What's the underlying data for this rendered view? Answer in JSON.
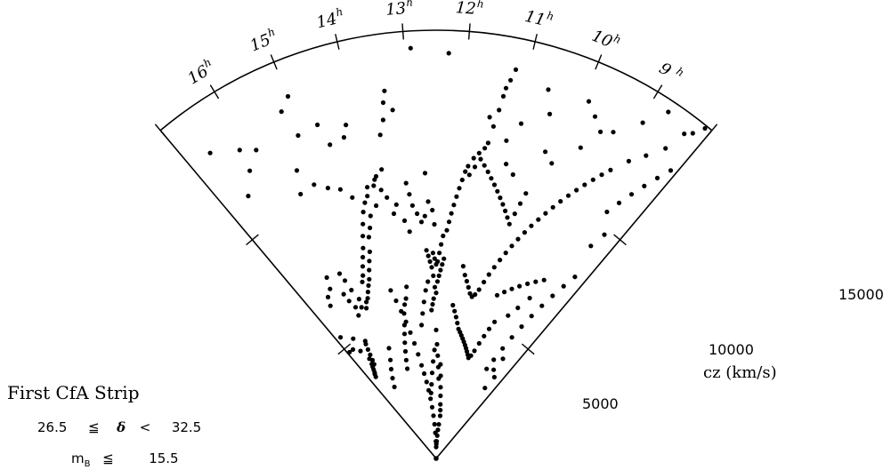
{
  "chart_data": {
    "type": "scatter",
    "title": "First CfA Strip",
    "constraints": {
      "dec_low": "26.5",
      "dec_rel1": "≦",
      "dec_symbol": "δ",
      "dec_rel2": "<",
      "dec_high": "32.5",
      "mag_symbol": "m",
      "mag_sub": "B",
      "mag_rel": "≦",
      "mag_limit": "15.5"
    },
    "ra_axis": {
      "unit_superscript": "h",
      "ticks": [
        "8",
        "9",
        "10",
        "11",
        "12",
        "13",
        "14",
        "15",
        "16",
        "17"
      ],
      "labels": [
        "9",
        "10",
        "11",
        "12",
        "13",
        "14",
        "15",
        "16"
      ],
      "range_hours": [
        8,
        17
      ]
    },
    "cz_axis": {
      "label": "cz (km/s)",
      "ticks": [
        "5000",
        "10000",
        "15000"
      ],
      "range": [
        0,
        15000
      ]
    },
    "points_description": "galaxy positions (RA hours, cz km/s)",
    "points": [
      [
        12.9,
        14400
      ],
      [
        12.3,
        14200
      ],
      [
        11.3,
        13200
      ],
      [
        11.35,
        12400
      ],
      [
        11.4,
        11800
      ],
      [
        11.45,
        11200
      ],
      [
        11.5,
        12100
      ],
      [
        11.32,
        12900
      ],
      [
        11.2,
        13900
      ],
      [
        11.25,
        13500
      ],
      [
        13.4,
        13000
      ],
      [
        13.5,
        12000
      ],
      [
        13.45,
        12600
      ],
      [
        13.6,
        11500
      ],
      [
        13.3,
        12300
      ],
      [
        13.7,
        10300
      ],
      [
        13.9,
        10000
      ],
      [
        14.1,
        9800
      ],
      [
        14.3,
        11700
      ],
      [
        14.2,
        12100
      ],
      [
        12.75,
        10000
      ],
      [
        12.7,
        9000
      ],
      [
        12.55,
        8200
      ],
      [
        12.6,
        8700
      ],
      [
        12.8,
        8500
      ],
      [
        12.9,
        8300
      ],
      [
        13.0,
        8600
      ],
      [
        13.1,
        8900
      ],
      [
        13.15,
        9300
      ],
      [
        13.2,
        9700
      ],
      [
        13.25,
        8000
      ],
      [
        13.35,
        8400
      ],
      [
        13.5,
        9000
      ],
      [
        13.6,
        8700
      ],
      [
        13.7,
        9300
      ],
      [
        13.8,
        9600
      ],
      [
        14.0,
        9100
      ],
      [
        14.2,
        8800
      ],
      [
        14.3,
        8400
      ],
      [
        14.4,
        8100
      ],
      [
        14.5,
        7600
      ],
      [
        14.6,
        7300
      ],
      [
        14.7,
        7000
      ],
      [
        14.8,
        6700
      ],
      [
        14.9,
        6500
      ],
      [
        15.0,
        6300
      ],
      [
        15.1,
        6100
      ],
      [
        15.2,
        6000
      ],
      [
        14.65,
        7800
      ],
      [
        14.75,
        7500
      ],
      [
        14.85,
        7200
      ],
      [
        14.95,
        6900
      ],
      [
        15.05,
        6700
      ],
      [
        14.55,
        8200
      ],
      [
        14.45,
        8600
      ],
      [
        14.35,
        9000
      ],
      [
        14.25,
        9300
      ],
      [
        14.15,
        9500
      ],
      [
        13.95,
        9800
      ],
      [
        13.85,
        10100
      ],
      [
        15.3,
        5800
      ],
      [
        15.4,
        6200
      ],
      [
        15.5,
        6600
      ],
      [
        15.55,
        7000
      ],
      [
        15.6,
        7300
      ],
      [
        15.45,
        5900
      ],
      [
        15.65,
        6000
      ],
      [
        15.7,
        5700
      ],
      [
        15.75,
        6300
      ],
      [
        15.8,
        6600
      ],
      [
        16.0,
        7400
      ],
      [
        16.1,
        7000
      ],
      [
        16.3,
        6800
      ],
      [
        16.4,
        6500
      ],
      [
        16.2,
        12000
      ],
      [
        16.5,
        11300
      ],
      [
        16.6,
        13300
      ],
      [
        15.4,
        11200
      ],
      [
        15.1,
        12300
      ],
      [
        14.6,
        11600
      ],
      [
        14.7,
        12400
      ],
      [
        15.9,
        12500
      ],
      [
        16.15,
        12800
      ],
      [
        15.0,
        13700
      ],
      [
        15.2,
        13300
      ],
      [
        15.55,
        10400
      ],
      [
        15.2,
        10500
      ],
      [
        14.95,
        10200
      ],
      [
        14.7,
        10000
      ],
      [
        14.5,
        9600
      ],
      [
        16.3,
        4200
      ],
      [
        16.35,
        4000
      ],
      [
        16.4,
        3900
      ],
      [
        16.45,
        3800
      ],
      [
        16.5,
        3700
      ],
      [
        16.55,
        3650
      ],
      [
        16.2,
        4100
      ],
      [
        16.25,
        3950
      ],
      [
        16.6,
        3550
      ],
      [
        16.15,
        4300
      ],
      [
        16.1,
        4500
      ],
      [
        16.05,
        4700
      ],
      [
        16.0,
        4800
      ],
      [
        16.45,
        4600
      ],
      [
        16.4,
        5100
      ],
      [
        16.7,
        4800
      ],
      [
        16.8,
        5400
      ],
      [
        16.9,
        4800
      ],
      [
        12.55,
        6000
      ],
      [
        12.6,
        5600
      ],
      [
        12.65,
        5400
      ],
      [
        12.7,
        5200
      ],
      [
        12.5,
        5800
      ],
      [
        12.45,
        6200
      ],
      [
        12.4,
        6400
      ],
      [
        12.35,
        6600
      ],
      [
        12.3,
        6800
      ],
      [
        12.25,
        7000
      ],
      [
        12.6,
        6400
      ],
      [
        12.65,
        6700
      ],
      [
        12.7,
        6900
      ],
      [
        12.75,
        7100
      ],
      [
        12.8,
        7300
      ],
      [
        12.5,
        6800
      ],
      [
        12.55,
        7000
      ],
      [
        12.6,
        7200
      ],
      [
        12.45,
        6900
      ],
      [
        12.4,
        7200
      ],
      [
        12.35,
        7500
      ],
      [
        12.3,
        7800
      ],
      [
        12.2,
        8000
      ],
      [
        12.15,
        8300
      ],
      [
        12.1,
        8600
      ],
      [
        12.05,
        8900
      ],
      [
        12.0,
        9200
      ],
      [
        11.95,
        9500
      ],
      [
        11.9,
        9800
      ],
      [
        11.85,
        10100
      ],
      [
        11.8,
        10300
      ],
      [
        11.7,
        10600
      ],
      [
        11.6,
        10800
      ],
      [
        11.5,
        11000
      ],
      [
        11.55,
        10600
      ],
      [
        11.65,
        10300
      ],
      [
        11.75,
        10000
      ],
      [
        11.45,
        10400
      ],
      [
        11.35,
        10200
      ],
      [
        11.25,
        10000
      ],
      [
        11.15,
        9800
      ],
      [
        11.05,
        9600
      ],
      [
        10.95,
        9400
      ],
      [
        10.85,
        9200
      ],
      [
        10.75,
        9000
      ],
      [
        10.65,
        8800
      ],
      [
        10.55,
        8600
      ],
      [
        10.5,
        9000
      ],
      [
        10.45,
        9400
      ],
      [
        10.4,
        9800
      ],
      [
        12.5,
        4500
      ],
      [
        12.45,
        4000
      ],
      [
        12.4,
        3600
      ],
      [
        12.35,
        3200
      ],
      [
        12.3,
        2800
      ],
      [
        12.6,
        3800
      ],
      [
        12.7,
        3400
      ],
      [
        12.8,
        3000
      ],
      [
        12.9,
        2600
      ],
      [
        13.0,
        2300
      ],
      [
        12.2,
        3300
      ],
      [
        12.15,
        2900
      ],
      [
        12.1,
        2500
      ],
      [
        12.05,
        2200
      ],
      [
        12.0,
        1900
      ],
      [
        11.95,
        1700
      ],
      [
        11.9,
        1500
      ],
      [
        12.0,
        1200
      ],
      [
        12.1,
        1000
      ],
      [
        12.2,
        800
      ],
      [
        12.3,
        600
      ],
      [
        12.4,
        500
      ],
      [
        12.5,
        400
      ],
      [
        12.6,
        600
      ],
      [
        12.7,
        900
      ],
      [
        12.8,
        1200
      ],
      [
        12.9,
        1500
      ],
      [
        13.0,
        1800
      ],
      [
        13.1,
        2100
      ],
      [
        13.2,
        2400
      ],
      [
        13.3,
        2700
      ],
      [
        13.4,
        3000
      ],
      [
        13.5,
        3300
      ],
      [
        13.6,
        3700
      ],
      [
        13.7,
        4100
      ],
      [
        13.8,
        4500
      ],
      [
        13.9,
        4900
      ],
      [
        14.0,
        5300
      ],
      [
        14.1,
        5700
      ],
      [
        14.2,
        6100
      ],
      [
        11.8,
        5400
      ],
      [
        11.7,
        5200
      ],
      [
        11.6,
        5000
      ],
      [
        11.5,
        4800
      ],
      [
        11.4,
        4600
      ],
      [
        11.3,
        4500
      ],
      [
        11.2,
        4400
      ],
      [
        11.1,
        4300
      ],
      [
        11.0,
        4200
      ],
      [
        10.9,
        4100
      ],
      [
        10.8,
        4000
      ],
      [
        10.7,
        3900
      ],
      [
        10.6,
        3800
      ],
      [
        10.5,
        3700
      ],
      [
        10.4,
        3800
      ],
      [
        10.3,
        4000
      ],
      [
        10.2,
        4300
      ],
      [
        10.1,
        4600
      ],
      [
        10.0,
        4900
      ],
      [
        9.9,
        5200
      ],
      [
        11.6,
        6800
      ],
      [
        11.5,
        6500
      ],
      [
        11.4,
        6300
      ],
      [
        11.3,
        6100
      ],
      [
        11.2,
        5900
      ],
      [
        11.1,
        5800
      ],
      [
        11.0,
        5900
      ],
      [
        10.9,
        6100
      ],
      [
        10.8,
        6400
      ],
      [
        10.7,
        6700
      ],
      [
        10.6,
        7000
      ],
      [
        10.5,
        7300
      ],
      [
        10.4,
        7600
      ],
      [
        10.3,
        7900
      ],
      [
        10.2,
        8200
      ],
      [
        10.1,
        8500
      ],
      [
        10.0,
        8800
      ],
      [
        9.9,
        9100
      ],
      [
        9.8,
        9400
      ],
      [
        9.7,
        9700
      ],
      [
        9.6,
        10000
      ],
      [
        9.5,
        10300
      ],
      [
        9.4,
        10600
      ],
      [
        9.3,
        10900
      ],
      [
        9.2,
        11200
      ],
      [
        9.1,
        11500
      ],
      [
        9.0,
        11800
      ],
      [
        9.5,
        12800
      ],
      [
        9.3,
        13000
      ],
      [
        9.7,
        12000
      ],
      [
        9.0,
        7300
      ],
      [
        9.2,
        7100
      ],
      [
        9.4,
        6900
      ],
      [
        9.6,
        6700
      ],
      [
        9.8,
        6500
      ],
      [
        10.0,
        6300
      ],
      [
        10.2,
        6100
      ],
      [
        9.1,
        6500
      ],
      [
        9.3,
        6000
      ],
      [
        9.5,
        5600
      ],
      [
        8.6,
        10500
      ],
      [
        8.5,
        11000
      ],
      [
        8.4,
        11500
      ],
      [
        8.3,
        12000
      ],
      [
        8.2,
        12500
      ],
      [
        8.1,
        13000
      ],
      [
        8.4,
        13500
      ],
      [
        8.6,
        12900
      ],
      [
        8.8,
        12400
      ],
      [
        8.95,
        13800
      ],
      [
        8.3,
        8000
      ],
      [
        8.4,
        7500
      ],
      [
        8.5,
        7000
      ],
      [
        8.6,
        6500
      ],
      [
        8.7,
        6000
      ],
      [
        8.8,
        5500
      ],
      [
        8.9,
        5000
      ],
      [
        9.0,
        4500
      ],
      [
        9.1,
        4000
      ],
      [
        9.2,
        3600
      ],
      [
        8.5,
        3500
      ],
      [
        8.6,
        3000
      ],
      [
        8.7,
        4200
      ],
      [
        8.8,
        3700
      ],
      [
        8.45,
        9200
      ],
      [
        8.35,
        9800
      ],
      [
        8.2,
        14500
      ],
      [
        8.1,
        14900
      ],
      [
        8.3,
        14300
      ],
      [
        8.7,
        14600
      ],
      [
        9.7,
        13200
      ],
      [
        9.9,
        13600
      ],
      [
        10.1,
        11100
      ],
      [
        10.3,
        11400
      ],
      [
        10.8,
        10300
      ],
      [
        11.0,
        10600
      ],
      [
        11.1,
        11400
      ],
      [
        10.9,
        12100
      ],
      [
        10.6,
        13500
      ],
      [
        10.45,
        12700
      ],
      [
        13.6,
        6100
      ],
      [
        13.7,
        5700
      ],
      [
        13.8,
        5500
      ],
      [
        13.9,
        5200
      ],
      [
        14.0,
        4800
      ],
      [
        14.1,
        4500
      ],
      [
        14.2,
        4200
      ],
      [
        14.3,
        3900
      ],
      [
        14.4,
        3600
      ],
      [
        14.5,
        3300
      ],
      [
        15.1,
        4200
      ],
      [
        15.3,
        3800
      ],
      [
        15.5,
        3500
      ],
      [
        15.7,
        3200
      ],
      [
        15.9,
        2900
      ],
      [
        13.2,
        4700
      ],
      [
        13.1,
        5100
      ],
      [
        13.0,
        5500
      ],
      [
        12.9,
        5900
      ],
      [
        12.8,
        6200
      ]
    ]
  }
}
